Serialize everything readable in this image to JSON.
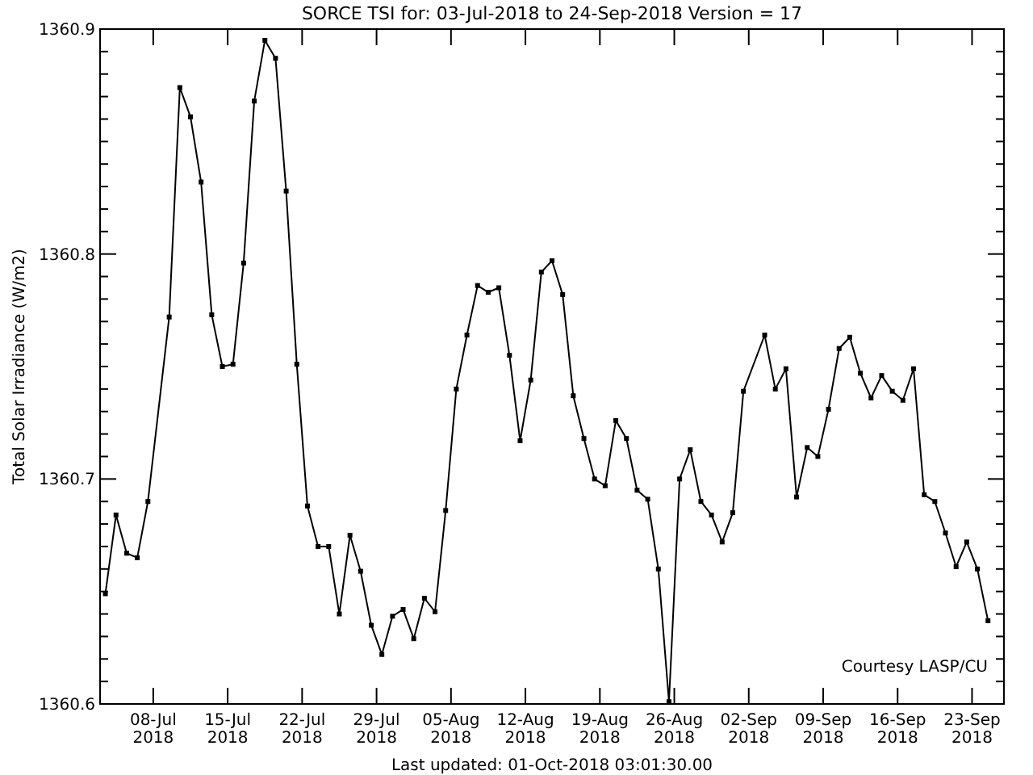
{
  "chart_data": {
    "type": "line",
    "title": "SORCE TSI for: 03-Jul-2018 to 24-Sep-2018 Version = 17",
    "ylabel": "Total Solar Irradiance (W/m2)",
    "annotations": [
      "Courtesy LASP/CU",
      "Last updated: 01-Oct-2018 03:01:30.00"
    ],
    "xlim": [
      "2018-07-03",
      "2018-09-26"
    ],
    "xticks": [
      {
        "value": "2018-07-08",
        "label": "08-Jul\n2018"
      },
      {
        "value": "2018-07-15",
        "label": "15-Jul\n2018"
      },
      {
        "value": "2018-07-22",
        "label": "22-Jul\n2018"
      },
      {
        "value": "2018-07-29",
        "label": "29-Jul\n2018"
      },
      {
        "value": "2018-08-05",
        "label": "05-Aug\n2018"
      },
      {
        "value": "2018-08-12",
        "label": "12-Aug\n2018"
      },
      {
        "value": "2018-08-19",
        "label": "19-Aug\n2018"
      },
      {
        "value": "2018-08-26",
        "label": "26-Aug\n2018"
      },
      {
        "value": "2018-09-02",
        "label": "02-Sep\n2018"
      },
      {
        "value": "2018-09-09",
        "label": "09-Sep\n2018"
      },
      {
        "value": "2018-09-16",
        "label": "16-Sep\n2018"
      },
      {
        "value": "2018-09-23",
        "label": "23-Sep\n2018"
      }
    ],
    "ylim": [
      1360.6,
      1360.9
    ],
    "yticks": [
      1360.6,
      {
        "value": 1360.61,
        "label": null
      },
      {
        "value": 1360.62,
        "label": null
      },
      {
        "value": 1360.63,
        "label": null
      },
      {
        "value": 1360.64,
        "label": null
      },
      {
        "value": 1360.65,
        "label": null
      },
      {
        "value": 1360.66,
        "label": null
      },
      {
        "value": 1360.67,
        "label": null
      },
      {
        "value": 1360.68,
        "label": null
      },
      {
        "value": 1360.69,
        "label": null
      },
      1360.7,
      {
        "value": 1360.71,
        "label": null
      },
      {
        "value": 1360.72,
        "label": null
      },
      {
        "value": 1360.73,
        "label": null
      },
      {
        "value": 1360.74,
        "label": null
      },
      {
        "value": 1360.75,
        "label": null
      },
      {
        "value": 1360.76,
        "label": null
      },
      {
        "value": 1360.77,
        "label": null
      },
      {
        "value": 1360.78,
        "label": null
      },
      {
        "value": 1360.79,
        "label": null
      },
      1360.8,
      {
        "value": 1360.81,
        "label": null
      },
      {
        "value": 1360.82,
        "label": null
      },
      {
        "value": 1360.83,
        "label": null
      },
      {
        "value": 1360.84,
        "label": null
      },
      {
        "value": 1360.85,
        "label": null
      },
      {
        "value": 1360.86,
        "label": null
      },
      {
        "value": 1360.87,
        "label": null
      },
      {
        "value": 1360.88,
        "label": null
      },
      {
        "value": 1360.89,
        "label": null
      },
      1360.9
    ],
    "marker": "square",
    "line_style": "solid",
    "series": [
      {
        "color": "#000000",
        "x": [
          "2018-07-03T12:00",
          "2018-07-04T12:00",
          "2018-07-05T12:00",
          "2018-07-06T12:00",
          "2018-07-07T12:00",
          "2018-07-09T12:00",
          "2018-07-10T12:00",
          "2018-07-11T12:00",
          "2018-07-12T12:00",
          "2018-07-13T12:00",
          "2018-07-14T12:00",
          "2018-07-15T12:00",
          "2018-07-16T12:00",
          "2018-07-17T12:00",
          "2018-07-18T12:00",
          "2018-07-19T12:00",
          "2018-07-20T12:00",
          "2018-07-21T12:00",
          "2018-07-22T12:00",
          "2018-07-23T12:00",
          "2018-07-24T12:00",
          "2018-07-25T12:00",
          "2018-07-26T12:00",
          "2018-07-27T12:00",
          "2018-07-28T12:00",
          "2018-07-29T12:00",
          "2018-07-30T12:00",
          "2018-07-31T12:00",
          "2018-08-01T12:00",
          "2018-08-02T12:00",
          "2018-08-03T12:00",
          "2018-08-04T12:00",
          "2018-08-05T12:00",
          "2018-08-06T12:00",
          "2018-08-07T12:00",
          "2018-08-08T12:00",
          "2018-08-09T12:00",
          "2018-08-10T12:00",
          "2018-08-11T12:00",
          "2018-08-12T12:00",
          "2018-08-13T12:00",
          "2018-08-14T12:00",
          "2018-08-15T12:00",
          "2018-08-16T12:00",
          "2018-08-17T12:00",
          "2018-08-18T12:00",
          "2018-08-19T12:00",
          "2018-08-20T12:00",
          "2018-08-21T12:00",
          "2018-08-22T12:00",
          "2018-08-23T12:00",
          "2018-08-24T12:00",
          "2018-08-25T12:00",
          "2018-08-26T12:00",
          "2018-08-27T12:00",
          "2018-08-28T12:00",
          "2018-08-29T12:00",
          "2018-08-30T12:00",
          "2018-08-31T12:00",
          "2018-09-01T12:00",
          "2018-09-03T12:00",
          "2018-09-04T12:00",
          "2018-09-05T12:00",
          "2018-09-06T12:00",
          "2018-09-07T12:00",
          "2018-09-08T12:00",
          "2018-09-09T12:00",
          "2018-09-10T12:00",
          "2018-09-11T12:00",
          "2018-09-12T12:00",
          "2018-09-13T12:00",
          "2018-09-14T12:00",
          "2018-09-15T12:00",
          "2018-09-16T12:00",
          "2018-09-17T12:00",
          "2018-09-18T12:00",
          "2018-09-19T12:00",
          "2018-09-20T12:00",
          "2018-09-21T12:00",
          "2018-09-22T12:00",
          "2018-09-23T12:00",
          "2018-09-24T12:00"
        ],
        "values": [
          1360.649,
          1360.684,
          1360.667,
          1360.665,
          1360.69,
          1360.772,
          1360.874,
          1360.861,
          1360.832,
          1360.773,
          1360.75,
          1360.751,
          1360.796,
          1360.868,
          1360.895,
          1360.887,
          1360.828,
          1360.751,
          1360.688,
          1360.67,
          1360.67,
          1360.64,
          1360.675,
          1360.659,
          1360.635,
          1360.622,
          1360.639,
          1360.642,
          1360.629,
          1360.647,
          1360.641,
          1360.686,
          1360.74,
          1360.764,
          1360.786,
          1360.783,
          1360.785,
          1360.755,
          1360.717,
          1360.744,
          1360.792,
          1360.797,
          1360.782,
          1360.737,
          1360.718,
          1360.7,
          1360.697,
          1360.726,
          1360.718,
          1360.695,
          1360.691,
          1360.66,
          1360.601,
          1360.7,
          1360.713,
          1360.69,
          1360.684,
          1360.672,
          1360.685,
          1360.739,
          1360.764,
          1360.74,
          1360.749,
          1360.692,
          1360.714,
          1360.71,
          1360.731,
          1360.758,
          1360.763,
          1360.747,
          1360.736,
          1360.746,
          1360.739,
          1360.735,
          1360.749,
          1360.693,
          1360.69,
          1360.676,
          1360.661,
          1360.672,
          1360.66,
          1360.637
        ]
      }
    ]
  }
}
